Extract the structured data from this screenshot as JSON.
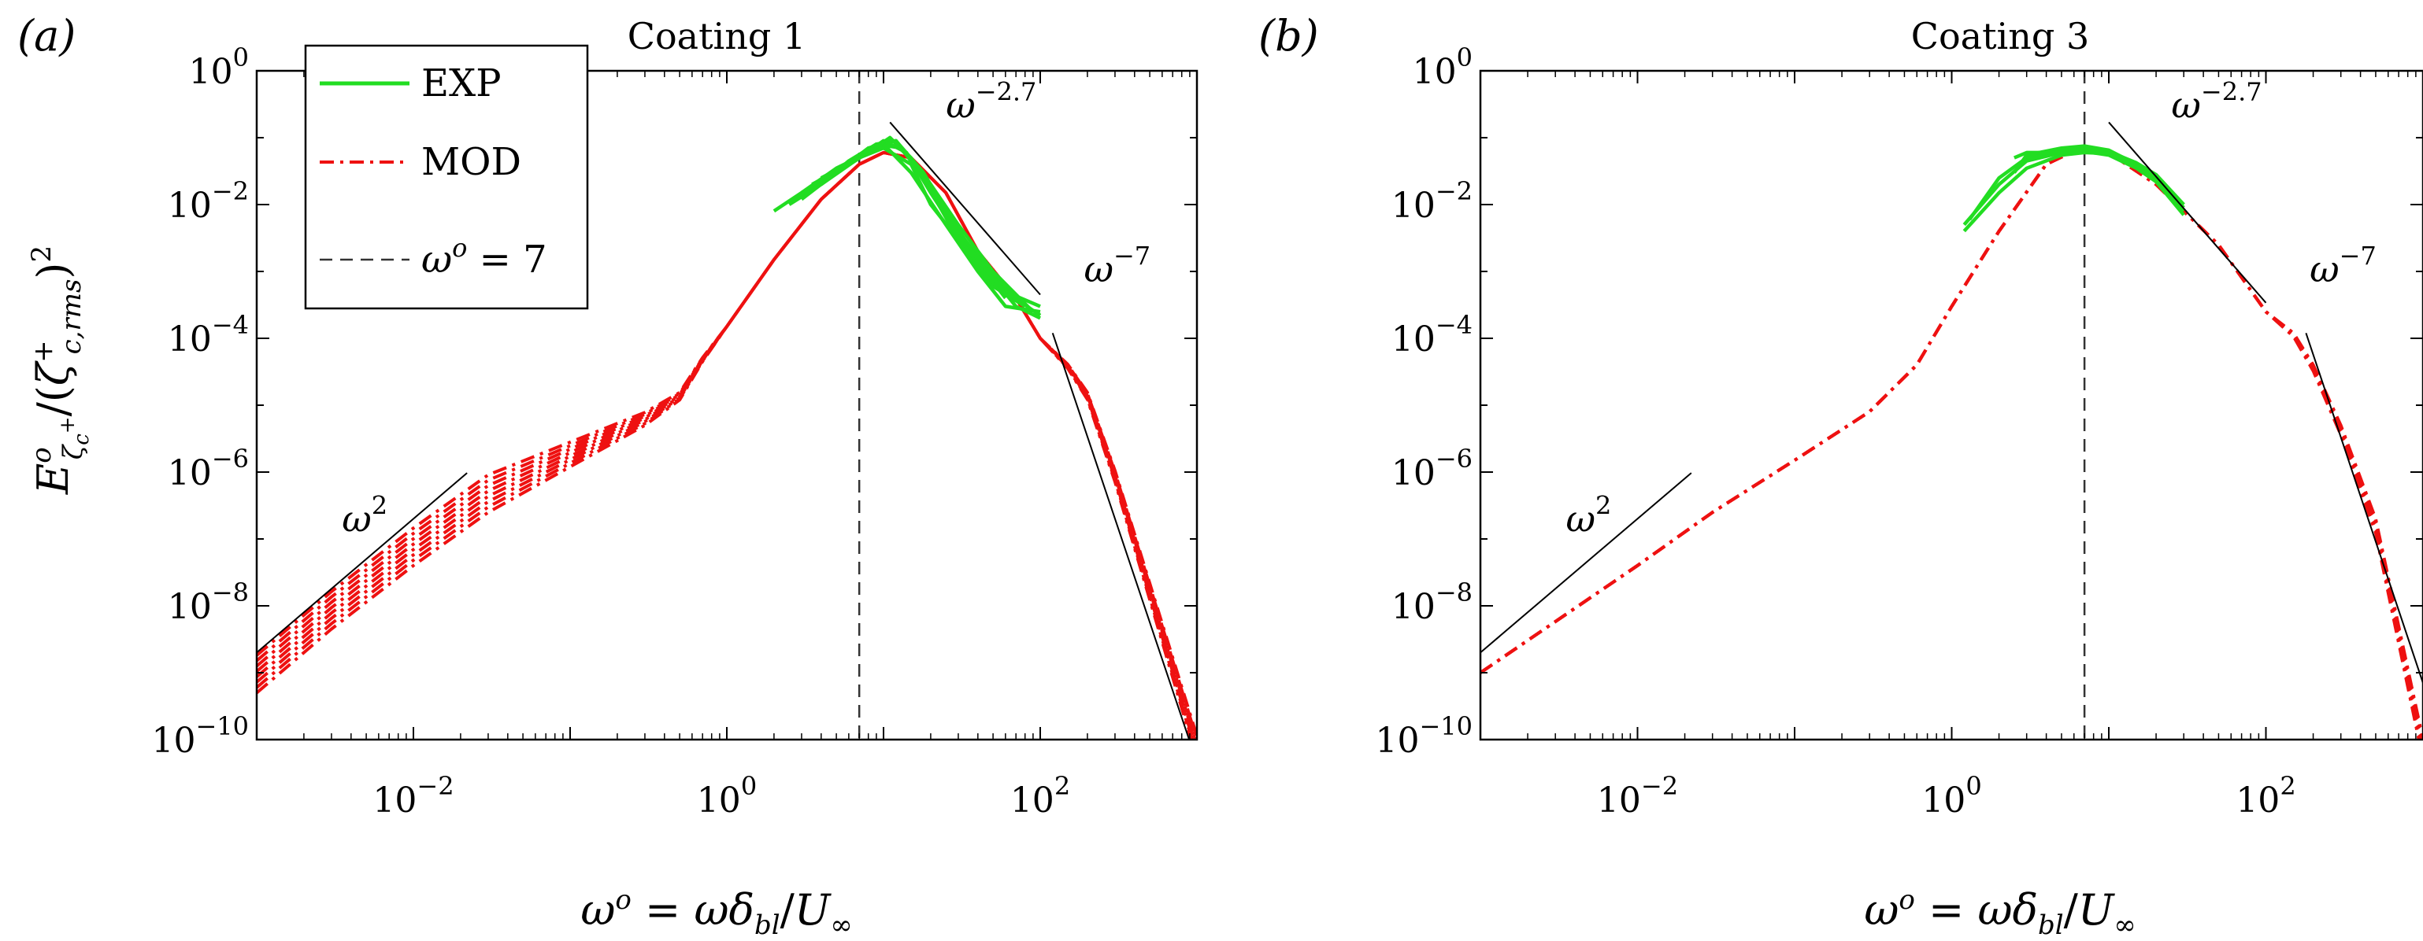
{
  "chart_data": [
    {
      "type": "line",
      "panel": "(a)",
      "title": "Coating 1",
      "xlabel": "ω^o = ωδ_bl/U_∞",
      "ylabel": "E^o_{ζ_c^+}/(ζ^+_{c,rms})^2",
      "xscale": "log",
      "yscale": "log",
      "xlim": [
        0.001,
        1000
      ],
      "ylim": [
        1e-10,
        1
      ],
      "x_ticks": [
        {
          "value": 0.01,
          "base": "10",
          "exp": "−2"
        },
        {
          "value": 1,
          "base": "10",
          "exp": "0"
        },
        {
          "value": 100,
          "base": "10",
          "exp": "2"
        }
      ],
      "y_ticks": [
        {
          "value": 1,
          "base": "10",
          "exp": "0"
        },
        {
          "value": 0.01,
          "base": "10",
          "exp": "−2"
        },
        {
          "value": 0.0001,
          "base": "10",
          "exp": "−4"
        },
        {
          "value": 1e-06,
          "base": "10",
          "exp": "−6"
        },
        {
          "value": 1e-08,
          "base": "10",
          "exp": "−8"
        },
        {
          "value": 1e-10,
          "base": "10",
          "exp": "−10"
        }
      ],
      "legend": {
        "location": "top-left",
        "entries": [
          {
            "label": "EXP",
            "style": "solid",
            "color": "#22dd22"
          },
          {
            "label": "MOD",
            "style": "dashdot",
            "color": "#ee1111"
          },
          {
            "label": "ω^o = 7",
            "style": "dashed",
            "color": "#333333"
          }
        ]
      },
      "vline": {
        "x": 7
      },
      "reference_lines": [
        {
          "label": "ω^2",
          "label_base": "ω",
          "label_exp": "2",
          "slope": 2,
          "x": [
            0.001,
            0.022
          ],
          "y": [
            2e-09,
            9.7e-07
          ],
          "label_at": [
            0.0035,
            1.3e-07
          ]
        },
        {
          "label": "ω^−2.7",
          "label_base": "ω",
          "label_exp": "−2.7",
          "slope": -2.7,
          "x": [
            11,
            100
          ],
          "y": [
            0.17,
            0.00045
          ],
          "label_at": [
            25,
            0.2
          ]
        },
        {
          "label": "ω^−7",
          "label_base": "ω",
          "label_exp": "−7",
          "slope": -7,
          "x": [
            120,
            1000
          ],
          "y": [
            0.00012,
            4.5e-11
          ],
          "label_at": [
            190,
            0.0007
          ]
        }
      ],
      "series_model": {
        "name": "MOD",
        "color": "#ee1111",
        "style": "dashdot",
        "count": 8,
        "low_freq_offsets": [
          0.0,
          0.08,
          0.16,
          0.24,
          0.32,
          0.4,
          0.48,
          0.56
        ],
        "high_freq_offsets": [
          0.0,
          -0.05,
          -0.1,
          -0.15,
          -0.2,
          0.05,
          -0.25,
          -0.3
        ],
        "base": {
          "x": [
            0.001,
            0.003,
            0.01,
            0.03,
            0.1,
            0.3,
            0.5,
            0.7,
            1,
            2,
            4,
            7,
            10,
            15,
            25,
            40,
            70,
            100,
            150,
            200,
            300,
            500,
            1000
          ],
          "y": [
            5e-10,
            4.5e-09,
            4e-08,
            2.5e-07,
            1.2e-06,
            5e-06,
            1.2e-05,
            4.5e-05,
            0.00015,
            0.0015,
            0.012,
            0.04,
            0.06,
            0.05,
            0.015,
            0.002,
            0.0004,
            0.0001,
            4e-05,
            1.5e-05,
            1e-06,
            2e-08,
            1e-10
          ]
        }
      },
      "series_exp": {
        "name": "EXP",
        "color": "#22dd22",
        "style": "solid",
        "count": 8,
        "curves": [
          {
            "x": [
              2,
              3,
              5,
              7,
              10,
              15,
              20,
              30,
              50,
              100
            ],
            "y": [
              0.008,
              0.015,
              0.03,
              0.05,
              0.07,
              0.04,
              0.01,
              0.003,
              0.0006,
              0.0003
            ]
          },
          {
            "x": [
              2.5,
              4,
              7,
              10,
              15,
              25,
              40,
              60,
              100
            ],
            "y": [
              0.01,
              0.02,
              0.05,
              0.08,
              0.03,
              0.005,
              0.001,
              0.0003,
              0.00025
            ]
          },
          {
            "x": [
              3,
              5,
              8,
              12,
              18,
              30,
              50,
              80
            ],
            "y": [
              0.012,
              0.03,
              0.07,
              0.09,
              0.025,
              0.003,
              0.0006,
              0.0003
            ]
          },
          {
            "x": [
              3,
              5,
              8,
              11,
              15,
              25,
              40,
              70
            ],
            "y": [
              0.015,
              0.035,
              0.06,
              0.1,
              0.05,
              0.008,
              0.0015,
              0.0004
            ]
          },
          {
            "x": [
              3.5,
              6,
              9,
              13,
              20,
              30,
              50,
              90
            ],
            "y": [
              0.02,
              0.04,
              0.08,
              0.07,
              0.02,
              0.005,
              0.001,
              0.00025
            ]
          },
          {
            "x": [
              4,
              6,
              9,
              12,
              18,
              30,
              60,
              100
            ],
            "y": [
              0.02,
              0.045,
              0.08,
              0.09,
              0.03,
              0.004,
              0.0005,
              0.00022
            ]
          },
          {
            "x": [
              4,
              7,
              10,
              14,
              20,
              35,
              60
            ],
            "y": [
              0.025,
              0.05,
              0.09,
              0.06,
              0.015,
              0.002,
              0.0004
            ]
          },
          {
            "x": [
              5,
              8,
              11,
              16,
              25,
              40,
              70,
              100
            ],
            "y": [
              0.03,
              0.06,
              0.1,
              0.04,
              0.008,
              0.0015,
              0.0003,
              0.0002
            ]
          }
        ]
      }
    },
    {
      "type": "line",
      "panel": "(b)",
      "title": "Coating 3",
      "xlabel": "ω^o = ωδ_bl/U_∞",
      "ylabel": "",
      "xscale": "log",
      "yscale": "log",
      "xlim": [
        0.001,
        1000
      ],
      "ylim": [
        1e-10,
        1
      ],
      "x_ticks": [
        {
          "value": 0.01,
          "base": "10",
          "exp": "−2"
        },
        {
          "value": 1,
          "base": "10",
          "exp": "0"
        },
        {
          "value": 100,
          "base": "10",
          "exp": "2"
        }
      ],
      "y_ticks": [
        {
          "value": 1,
          "base": "10",
          "exp": "0"
        },
        {
          "value": 0.01,
          "base": "10",
          "exp": "−2"
        },
        {
          "value": 0.0001,
          "base": "10",
          "exp": "−4"
        },
        {
          "value": 1e-06,
          "base": "10",
          "exp": "−6"
        },
        {
          "value": 1e-08,
          "base": "10",
          "exp": "−8"
        },
        {
          "value": 1e-10,
          "base": "10",
          "exp": "−10"
        }
      ],
      "vline": {
        "x": 7
      },
      "reference_lines": [
        {
          "label": "ω^2",
          "label_base": "ω",
          "label_exp": "2",
          "slope": 2,
          "x": [
            0.001,
            0.022
          ],
          "y": [
            2e-09,
            9.7e-07
          ],
          "label_at": [
            0.0035,
            1.3e-07
          ]
        },
        {
          "label": "ω^−2.7",
          "label_base": "ω",
          "label_exp": "−2.7",
          "slope": -2.7,
          "x": [
            10,
            100
          ],
          "y": [
            0.17,
            0.00034
          ],
          "label_at": [
            25,
            0.2
          ]
        },
        {
          "label": "ω^−7",
          "label_base": "ω",
          "label_exp": "−7",
          "slope": -7,
          "x": [
            180,
            1000
          ],
          "y": [
            0.00012,
            7e-10
          ],
          "label_at": [
            190,
            0.0007
          ]
        }
      ],
      "series_model": {
        "name": "MOD",
        "color": "#ee1111",
        "style": "dashdot",
        "count": 6,
        "low_freq_offsets": [
          0,
          0,
          0,
          0,
          0,
          0
        ],
        "high_freq_offsets": [
          0.0,
          -0.06,
          -0.12,
          -0.18,
          -0.24,
          -0.3
        ],
        "base": {
          "x": [
            0.001,
            0.01,
            0.03,
            0.1,
            0.3,
            0.6,
            1,
            2,
            4,
            7,
            10,
            20,
            50,
            100,
            150,
            200,
            300,
            500,
            1000
          ],
          "y": [
            1e-09,
            4e-08,
            2.5e-07,
            1.5e-06,
            8e-06,
            4e-05,
            0.0003,
            0.004,
            0.04,
            0.075,
            0.06,
            0.02,
            0.0025,
            0.00025,
            0.00012,
            4e-05,
            5e-06,
            2e-07,
            1e-10
          ]
        }
      },
      "series_exp": {
        "name": "EXP",
        "color": "#22dd22",
        "style": "solid",
        "count": 5,
        "curves": [
          {
            "x": [
              1.2,
              2,
              3,
              5,
              7,
              10,
              15,
              20,
              30
            ],
            "y": [
              0.005,
              0.02,
              0.045,
              0.06,
              0.065,
              0.06,
              0.04,
              0.025,
              0.009
            ]
          },
          {
            "x": [
              1.3,
              2,
              3,
              5,
              7,
              10,
              15,
              20,
              30
            ],
            "y": [
              0.006,
              0.025,
              0.05,
              0.065,
              0.07,
              0.062,
              0.042,
              0.028,
              0.01
            ]
          },
          {
            "x": [
              2.5,
              3,
              5,
              7,
              10,
              15,
              20,
              30
            ],
            "y": [
              0.03,
              0.055,
              0.07,
              0.075,
              0.065,
              0.04,
              0.025,
              0.008
            ]
          },
          {
            "x": [
              2.5,
              3,
              5,
              7,
              10,
              15,
              20,
              30
            ],
            "y": [
              0.05,
              0.06,
              0.06,
              0.062,
              0.055,
              0.035,
              0.022,
              0.01
            ]
          },
          {
            "x": [
              1.2,
              2,
              3,
              5,
              7,
              10,
              15,
              20,
              30
            ],
            "y": [
              0.004,
              0.015,
              0.035,
              0.055,
              0.06,
              0.058,
              0.038,
              0.022,
              0.007
            ]
          }
        ]
      }
    }
  ]
}
